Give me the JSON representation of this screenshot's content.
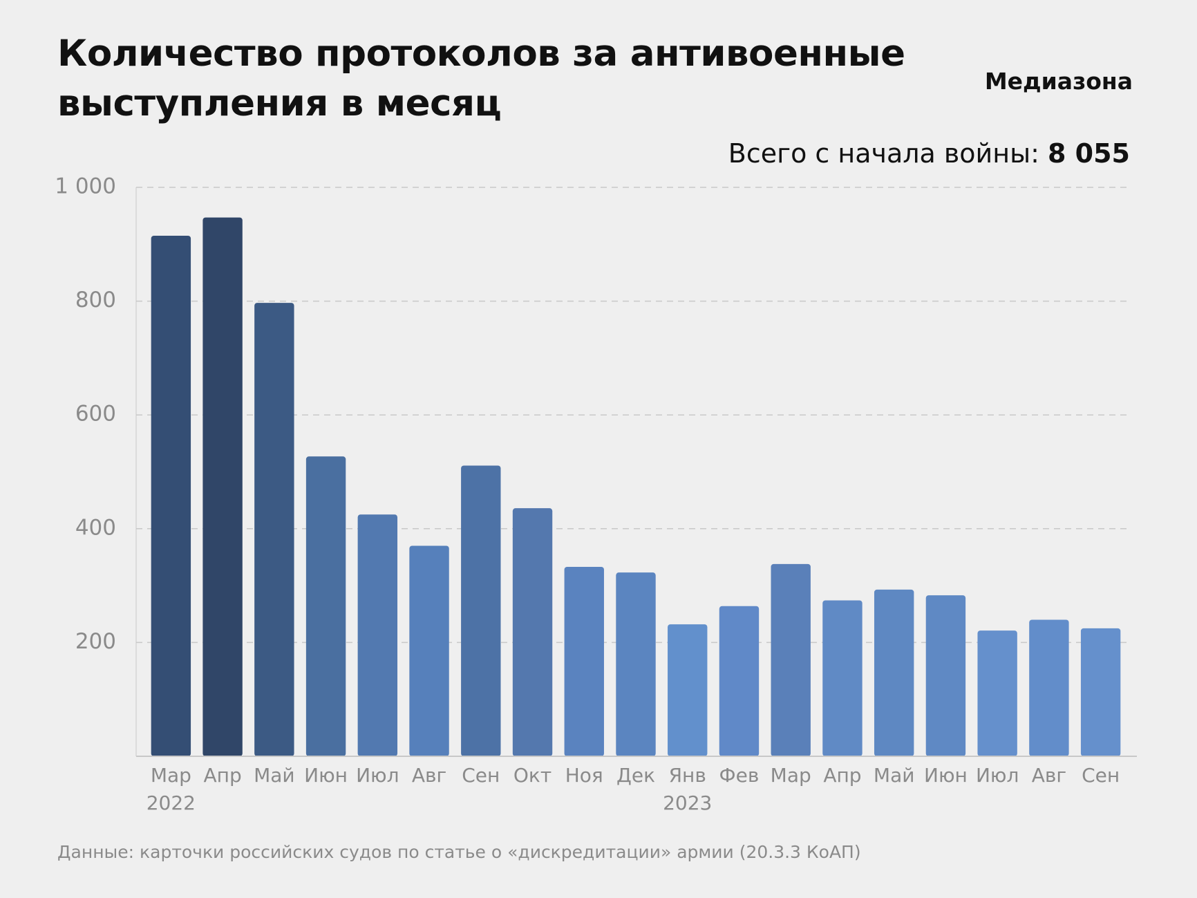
{
  "header": {
    "title": "Количество протоколов за антивоенные выступления в месяц",
    "brand": "Медиазона",
    "total_label": "Всего с начала войны:",
    "total_value": "8 055"
  },
  "chart_data": {
    "type": "bar",
    "categories": [
      "Мар",
      "Апр",
      "Май",
      "Июн",
      "Июл",
      "Авг",
      "Сен",
      "Окт",
      "Ноя",
      "Дек",
      "Янв",
      "Фев",
      "Мар",
      "Апр",
      "Май",
      "Июн",
      "Июл",
      "Авг",
      "Сен"
    ],
    "year_labels": [
      "2022",
      null,
      null,
      null,
      null,
      null,
      null,
      null,
      null,
      null,
      "2023",
      null,
      null,
      null,
      null,
      null,
      null,
      null,
      null
    ],
    "values": [
      915,
      947,
      797,
      527,
      425,
      370,
      511,
      436,
      333,
      323,
      232,
      264,
      338,
      274,
      293,
      283,
      221,
      240,
      225
    ],
    "colors": [
      "#344e74",
      "#304668",
      "#3c5a84",
      "#4a6fa0",
      "#5279b0",
      "#5680bb",
      "#4d72a6",
      "#5478ae",
      "#5a83bf",
      "#5b85c0",
      "#6290cc",
      "#6089c8",
      "#5a80b9",
      "#608ac5",
      "#5e88c2",
      "#5f89c4",
      "#6590cc",
      "#628dca",
      "#6590cc"
    ],
    "ylim": [
      0,
      1000
    ],
    "yticks": [
      200,
      400,
      600,
      800,
      {
        "value": 1000,
        "label": "1 000"
      }
    ],
    "grid": true
  },
  "source": "Данные: карточки российских судов по статье о «дискредитации» армии (20.3.3 КоАП)"
}
